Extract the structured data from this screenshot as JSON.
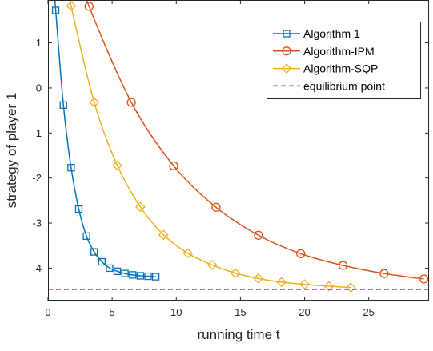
{
  "chart_data": {
    "type": "line",
    "title": "",
    "xlabel": "running time t",
    "ylabel": "strategy of player 1",
    "xlim": [
      0,
      29.7
    ],
    "ylim": [
      -4.72,
      1.95
    ],
    "xticks": [
      0,
      5,
      10,
      15,
      20,
      25
    ],
    "yticks": [
      1,
      0,
      -1,
      -2,
      -3,
      -4
    ],
    "grid": false,
    "legend_location": "top-right",
    "series": [
      {
        "name": "Algorithm 1",
        "color": "#0072BD",
        "marker": "square",
        "x": [
          0.6,
          1.2,
          1.8,
          2.4,
          3.0,
          3.6,
          4.2,
          4.8,
          5.4,
          6.0,
          6.6,
          7.2,
          7.8,
          8.4
        ],
        "y": [
          1.72,
          -0.38,
          -1.77,
          -2.69,
          -3.29,
          -3.64,
          -3.86,
          -4.0,
          -4.07,
          -4.12,
          -4.15,
          -4.17,
          -4.18,
          -4.19
        ]
      },
      {
        "name": "Algorithm-IPM",
        "color": "#D95319",
        "marker": "circle",
        "x": [
          3.2,
          6.5,
          9.8,
          13.1,
          16.4,
          19.7,
          23.0,
          26.2,
          29.3
        ],
        "y": [
          1.81,
          -0.32,
          -1.73,
          -2.65,
          -3.27,
          -3.68,
          -3.94,
          -4.12,
          -4.24
        ]
      },
      {
        "name": "Algorithm-SQP",
        "color": "#EDB120",
        "marker": "diamond",
        "x": [
          1.8,
          3.6,
          5.4,
          7.2,
          9.0,
          10.9,
          12.8,
          14.6,
          16.4,
          18.2,
          20.0,
          21.9,
          23.6
        ],
        "y": [
          1.82,
          -0.32,
          -1.72,
          -2.64,
          -3.26,
          -3.67,
          -3.93,
          -4.11,
          -4.23,
          -4.31,
          -4.36,
          -4.4,
          -4.43
        ]
      },
      {
        "name": "equilibrium point",
        "color": "#7E2F8E",
        "style": "dashed",
        "x": [
          0,
          29.7
        ],
        "y": [
          -4.47,
          -4.47
        ]
      }
    ]
  }
}
